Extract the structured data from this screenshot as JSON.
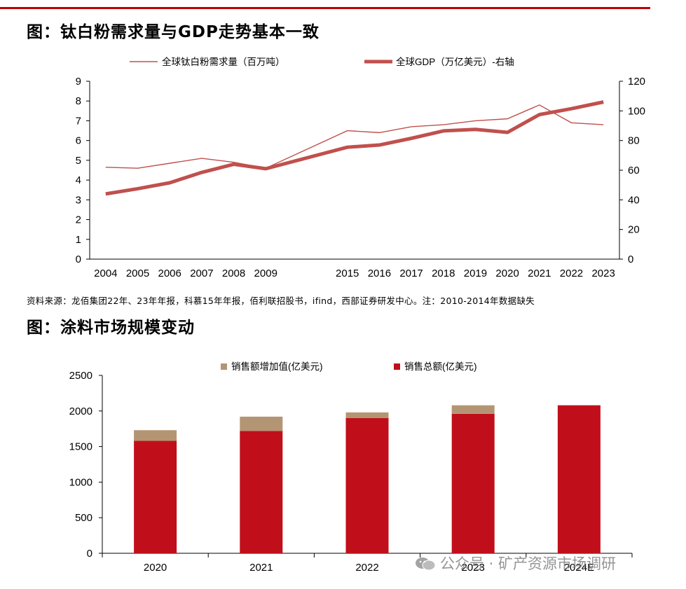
{
  "figure1": {
    "title": "图：钛白粉需求量与GDP走势基本一致",
    "source": "资料来源：龙佰集团22年、23年年报，科慕15年年报，佰利联招股书，ifind，西部证券研发中心。注：2010-2014年数据缺失"
  },
  "figure2": {
    "title": "图：涂料市场规模变动"
  },
  "watermark": {
    "text": "公众号 · 矿产资源市场调研"
  },
  "colors": {
    "line": "#c0504d",
    "bar_base": "#c00f1b",
    "bar_add": "#b49573",
    "rule": "#c00000"
  },
  "chart_data": [
    {
      "type": "line",
      "categories": [
        "2004",
        "2005",
        "2006",
        "2007",
        "2008",
        "2009",
        "2015",
        "2016",
        "2017",
        "2018",
        "2019",
        "2020",
        "2021",
        "2022",
        "2023"
      ],
      "series": [
        {
          "name": "全球钛白粉需求量（百万吨）",
          "axis": "left",
          "values": [
            4.65,
            4.6,
            4.85,
            5.1,
            4.9,
            4.6,
            6.5,
            6.4,
            6.7,
            6.8,
            7.0,
            7.1,
            7.8,
            6.9,
            6.8
          ]
        },
        {
          "name": "全球GDP（万亿美元）-右轴",
          "axis": "right",
          "values": [
            44,
            47.5,
            51.5,
            58.5,
            64,
            61,
            75.5,
            77,
            81.5,
            86.5,
            87.5,
            85.5,
            97.5,
            101.5,
            106
          ]
        }
      ],
      "y_left": {
        "min": 0,
        "max": 9,
        "ticks": [
          "0",
          "1",
          "2",
          "3",
          "4",
          "5",
          "6",
          "7",
          "8",
          "9"
        ]
      },
      "y_right": {
        "min": 0,
        "max": 120,
        "ticks": [
          "0",
          "20",
          "40",
          "60",
          "80",
          "100",
          "120"
        ]
      },
      "legend": "top"
    },
    {
      "type": "bar",
      "stacked": true,
      "categories": [
        "2020",
        "2021",
        "2022",
        "2023",
        "2024E"
      ],
      "series": [
        {
          "name": "销售总额(亿美元)",
          "values": [
            1580,
            1720,
            1900,
            1960,
            2080
          ]
        },
        {
          "name": "销售额增加值(亿美元)",
          "values": [
            150,
            200,
            80,
            120,
            0
          ]
        }
      ],
      "y": {
        "min": 0,
        "max": 2500,
        "ticks": [
          "0",
          "500",
          "1000",
          "1500",
          "2000",
          "2500"
        ]
      },
      "legend": "top"
    }
  ]
}
